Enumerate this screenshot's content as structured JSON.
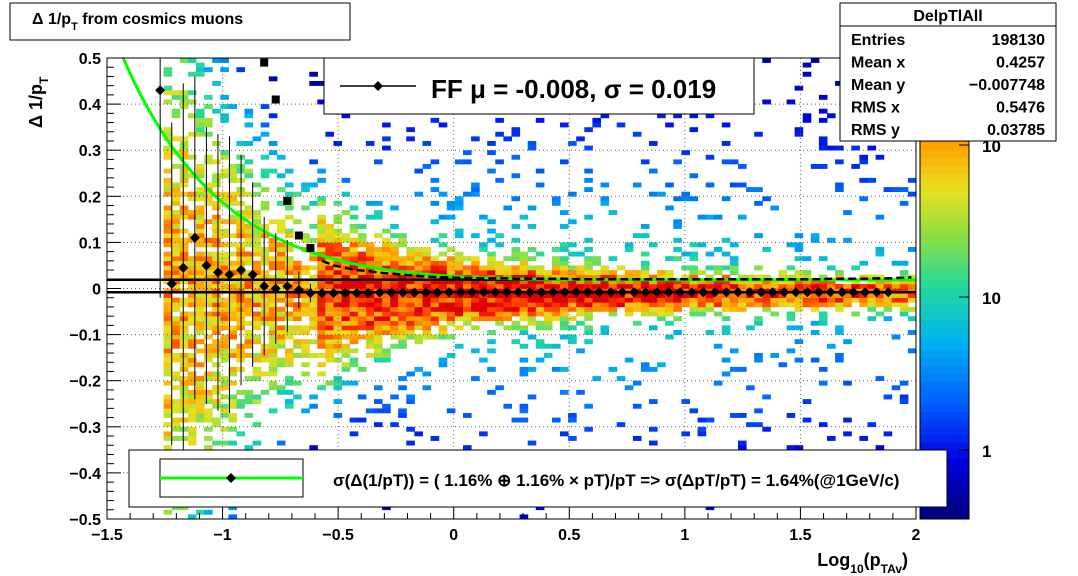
{
  "title_box": {
    "prefix": "Δ 1/p",
    "sub": "T",
    "suffix": "  from cosmics muons"
  },
  "stats": {
    "name": "DelpTlAll",
    "rows": [
      {
        "label": "Entries",
        "value": "198130"
      },
      {
        "label": "Mean x",
        "value": "0.4257"
      },
      {
        "label": "Mean y",
        "value": "−0.007748"
      },
      {
        "label": "RMS x",
        "value": "0.5476"
      },
      {
        "label": "RMS y",
        "value": "0.03785"
      }
    ]
  },
  "legend_top": {
    "text": "FF μ = -0.008, σ =   0.019"
  },
  "legend_bottom": {
    "text": "σ(Δ(1/pT)) = ( 1.16% ⊕  1.16% × pT)/pT => σ(ΔpT/pT) =  1.64%(@1GeV/c)"
  },
  "chart_data": {
    "type": "heatmap",
    "x_axis": {
      "label_main": "Log",
      "label_sub1": "10",
      "label_mid": "(p",
      "label_sub2": "TAv",
      "label_end": ")",
      "range": [
        -1.5,
        2.0
      ],
      "ticks": [
        "−1.5",
        "−1",
        "−0.5",
        "0",
        "0.5",
        "1",
        "1.5",
        "2"
      ]
    },
    "y_axis": {
      "label_main": "Δ 1/p",
      "label_sub": "T",
      "range": [
        -0.5,
        0.5
      ],
      "ticks": [
        "−0.5",
        "−0.4",
        "−0.3",
        "−0.2",
        "−0.1",
        "0",
        "0.1",
        "0.2",
        "0.3",
        "0.4",
        "0.5"
      ]
    },
    "z_axis": {
      "scale": "log",
      "labels": [
        "1",
        "10",
        "10"
      ]
    },
    "grid": true,
    "mean_profile": {
      "x": [
        -1.27,
        -1.22,
        -1.17,
        -1.12,
        -1.07,
        -1.02,
        -0.97,
        -0.92,
        -0.87,
        -0.82,
        -0.77,
        -0.72,
        -0.67,
        -0.62,
        -0.57,
        -0.52,
        -0.47,
        -0.42,
        -0.37,
        -0.32,
        -0.27,
        -0.22,
        -0.17,
        -0.12,
        -0.07,
        -0.02,
        0.03,
        0.08,
        0.13,
        0.18,
        0.23,
        0.28,
        0.33,
        0.38,
        0.43,
        0.48,
        0.53,
        0.58,
        0.63,
        0.68,
        0.73,
        0.78,
        0.83,
        0.88,
        0.93,
        0.98,
        1.03,
        1.08,
        1.13,
        1.18,
        1.23,
        1.28,
        1.33,
        1.38,
        1.43,
        1.48,
        1.53,
        1.58,
        1.63,
        1.68,
        1.73,
        1.78,
        1.83,
        1.88
      ],
      "y": [
        0.43,
        0.01,
        0.045,
        0.11,
        0.05,
        0.035,
        0.03,
        0.04,
        0.03,
        0.005,
        0.0,
        0.005,
        -0.003,
        -0.01,
        -0.01,
        -0.01,
        -0.01,
        -0.01,
        -0.01,
        -0.009,
        -0.009,
        -0.009,
        -0.009,
        -0.009,
        -0.009,
        -0.008,
        -0.008,
        -0.008,
        -0.008,
        -0.008,
        -0.008,
        -0.008,
        -0.008,
        -0.008,
        -0.008,
        -0.008,
        -0.008,
        -0.008,
        -0.008,
        -0.008,
        -0.008,
        -0.008,
        -0.008,
        -0.008,
        -0.008,
        -0.008,
        -0.008,
        -0.008,
        -0.008,
        -0.008,
        -0.008,
        -0.008,
        -0.008,
        -0.008,
        -0.008,
        -0.008,
        -0.008,
        -0.008,
        -0.008,
        -0.008,
        -0.008,
        -0.008,
        -0.008,
        -0.008
      ],
      "err": [
        0.45,
        0.35,
        0.4,
        0.35,
        0.3,
        0.3,
        0.3,
        0.25,
        0.2,
        0.15,
        0.12,
        0.1,
        0.04,
        0.02,
        0.01,
        0.008,
        0.006,
        0.005,
        0.004,
        0.004,
        0.003,
        0.003,
        0.003,
        0.002,
        0.002,
        0.002,
        0.002,
        0.002,
        0.002,
        0.002,
        0.002,
        0.002,
        0.002,
        0.002,
        0.002,
        0.002,
        0.002,
        0.002,
        0.002,
        0.002,
        0.002,
        0.002,
        0.002,
        0.002,
        0.002,
        0.002,
        0.002,
        0.002,
        0.002,
        0.002,
        0.002,
        0.002,
        0.002,
        0.002,
        0.002,
        0.002,
        0.002,
        0.002,
        0.002,
        0.002,
        0.002,
        0.002,
        0.002,
        0.002
      ]
    },
    "rms_profile": {
      "x": [
        -0.82,
        -0.77,
        -0.72,
        -0.67,
        -0.62,
        -0.57,
        -0.52,
        -0.47,
        -0.42,
        -0.37,
        -0.32,
        -0.27,
        -0.22,
        -0.17,
        -0.12,
        -0.07,
        -0.02,
        0.03,
        0.08,
        0.13,
        0.18,
        0.23,
        0.28,
        0.33,
        0.38,
        0.43,
        0.48,
        0.53,
        0.58,
        0.63,
        0.68,
        0.73,
        0.78,
        0.83,
        0.88,
        0.93,
        0.98,
        1.03,
        1.08,
        1.13,
        1.18,
        1.23,
        1.28,
        1.33,
        1.38,
        1.43,
        1.48,
        1.53,
        1.58,
        1.63,
        1.68,
        1.73,
        1.78,
        1.83,
        1.88,
        1.93,
        1.98
      ],
      "y": [
        0.49,
        0.41,
        0.19,
        0.115,
        0.088,
        0.06,
        0.05,
        0.045,
        0.04,
        0.038,
        0.034,
        0.032,
        0.03,
        0.028,
        0.026,
        0.025,
        0.024,
        0.023,
        0.023,
        0.022,
        0.022,
        0.022,
        0.021,
        0.021,
        0.021,
        0.021,
        0.021,
        0.02,
        0.02,
        0.02,
        0.02,
        0.02,
        0.02,
        0.02,
        0.02,
        0.02,
        0.02,
        0.02,
        0.02,
        0.02,
        0.02,
        0.02,
        0.02,
        0.02,
        0.02,
        0.02,
        0.02,
        0.02,
        0.02,
        0.021,
        0.021,
        0.021,
        0.021,
        0.022,
        0.022,
        0.023,
        0.024
      ]
    },
    "fit": {
      "a_percent": 1.16,
      "b_percent": 1.16,
      "color": "#00ff00"
    },
    "ff_line_y": 0.019,
    "mean_line_y": -0.008
  }
}
